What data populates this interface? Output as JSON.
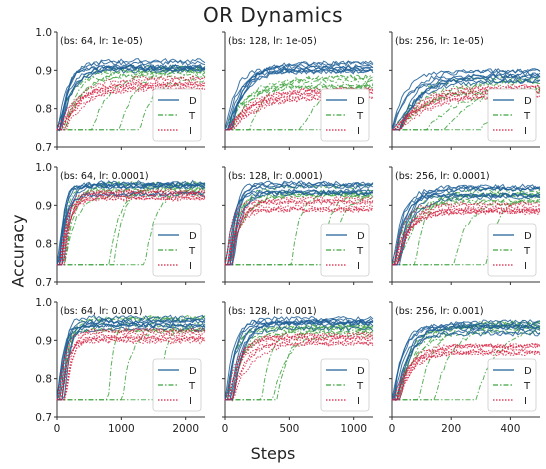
{
  "figure": {
    "title": "OR Dynamics",
    "xlabel": "Steps",
    "ylabel": "Accuracy",
    "legend": [
      "D",
      "T",
      "I"
    ],
    "colors": {
      "D": "#1f5f96",
      "T": "#3fa33f",
      "I": "#d62040"
    }
  },
  "chart_data": [
    {
      "type": "line",
      "panel_label": "(bs: 64, lr: 1e-05)",
      "row": 0,
      "col": 0,
      "xlim": [
        0,
        2300
      ],
      "ylim": [
        0.7,
        1.0
      ],
      "yticks": [
        "0.7",
        "0.8",
        "0.9",
        "1.0"
      ],
      "xticks": [],
      "series": [
        {
          "name": "D",
          "final": 0.93,
          "rise": 0.07
        },
        {
          "name": "T",
          "final": 0.91,
          "rise": 0.12
        },
        {
          "name": "I",
          "final": 0.88,
          "rise": 0.14
        }
      ]
    },
    {
      "type": "line",
      "panel_label": "(bs: 128, lr: 1e-05)",
      "row": 0,
      "col": 1,
      "xlim": [
        0,
        1150
      ],
      "ylim": [
        0.7,
        1.0
      ],
      "yticks": [],
      "xticks": [],
      "series": [
        {
          "name": "D",
          "final": 0.92,
          "rise": 0.1
        },
        {
          "name": "T",
          "final": 0.89,
          "rise": 0.15
        },
        {
          "name": "I",
          "final": 0.86,
          "rise": 0.17
        }
      ]
    },
    {
      "type": "line",
      "panel_label": "(bs: 256, lr: 1e-05)",
      "row": 0,
      "col": 2,
      "xlim": [
        0,
        500
      ],
      "ylim": [
        0.7,
        1.0
      ],
      "yticks": [],
      "xticks": [],
      "series": [
        {
          "name": "D",
          "final": 0.9,
          "rise": 0.15
        },
        {
          "name": "T",
          "final": 0.88,
          "rise": 0.2
        },
        {
          "name": "I",
          "final": 0.86,
          "rise": 0.22
        }
      ]
    },
    {
      "type": "line",
      "panel_label": "(bs: 64, lr: 0.0001)",
      "row": 1,
      "col": 0,
      "xlim": [
        0,
        2300
      ],
      "ylim": [
        0.7,
        1.0
      ],
      "yticks": [
        "0.7",
        "0.8",
        "0.9",
        "1.0"
      ],
      "xticks": [],
      "series": [
        {
          "name": "D",
          "final": 0.96,
          "rise": 0.04
        },
        {
          "name": "T",
          "final": 0.96,
          "rise": 0.06
        },
        {
          "name": "I",
          "final": 0.94,
          "rise": 0.05
        }
      ]
    },
    {
      "type": "line",
      "panel_label": "(bs: 128, lr: 0.0001)",
      "row": 1,
      "col": 1,
      "xlim": [
        0,
        1150
      ],
      "ylim": [
        0.7,
        1.0
      ],
      "yticks": [],
      "xticks": [],
      "series": [
        {
          "name": "D",
          "final": 0.96,
          "rise": 0.05
        },
        {
          "name": "T",
          "final": 0.95,
          "rise": 0.08
        },
        {
          "name": "I",
          "final": 0.92,
          "rise": 0.06
        }
      ]
    },
    {
      "type": "line",
      "panel_label": "(bs: 256, lr: 0.0001)",
      "row": 1,
      "col": 2,
      "xlim": [
        0,
        500
      ],
      "ylim": [
        0.7,
        1.0
      ],
      "yticks": [],
      "xticks": [],
      "series": [
        {
          "name": "D",
          "final": 0.95,
          "rise": 0.08
        },
        {
          "name": "T",
          "final": 0.94,
          "rise": 0.12
        },
        {
          "name": "I",
          "final": 0.91,
          "rise": 0.08
        }
      ]
    },
    {
      "type": "line",
      "panel_label": "(bs: 64, lr: 0.001)",
      "row": 2,
      "col": 0,
      "xlim": [
        0,
        2300
      ],
      "ylim": [
        0.7,
        1.0
      ],
      "yticks": [
        "0.7",
        "0.8",
        "0.9",
        "1.0"
      ],
      "xticks": [
        "0",
        "1000",
        "2000"
      ],
      "series": [
        {
          "name": "D",
          "final": 0.96,
          "rise": 0.04
        },
        {
          "name": "T",
          "final": 0.96,
          "rise": 0.05
        },
        {
          "name": "I",
          "final": 0.93,
          "rise": 0.05
        }
      ]
    },
    {
      "type": "line",
      "panel_label": "(bs: 128, lr: 0.001)",
      "row": 2,
      "col": 1,
      "xlim": [
        0,
        1150
      ],
      "ylim": [
        0.7,
        1.0
      ],
      "yticks": [],
      "xticks": [
        "0",
        "500",
        "1000"
      ],
      "series": [
        {
          "name": "D",
          "final": 0.96,
          "rise": 0.06
        },
        {
          "name": "T",
          "final": 0.95,
          "rise": 0.08
        },
        {
          "name": "I",
          "final": 0.92,
          "rise": 0.1
        }
      ]
    },
    {
      "type": "line",
      "panel_label": "(bs: 256, lr: 0.001)",
      "row": 2,
      "col": 2,
      "xlim": [
        0,
        500
      ],
      "ylim": [
        0.7,
        1.0
      ],
      "yticks": [],
      "xticks": [
        "0",
        "200",
        "400"
      ],
      "series": [
        {
          "name": "D",
          "final": 0.95,
          "rise": 0.1
        },
        {
          "name": "T",
          "final": 0.95,
          "rise": 0.12
        },
        {
          "name": "I",
          "final": 0.9,
          "rise": 0.1
        }
      ]
    }
  ]
}
